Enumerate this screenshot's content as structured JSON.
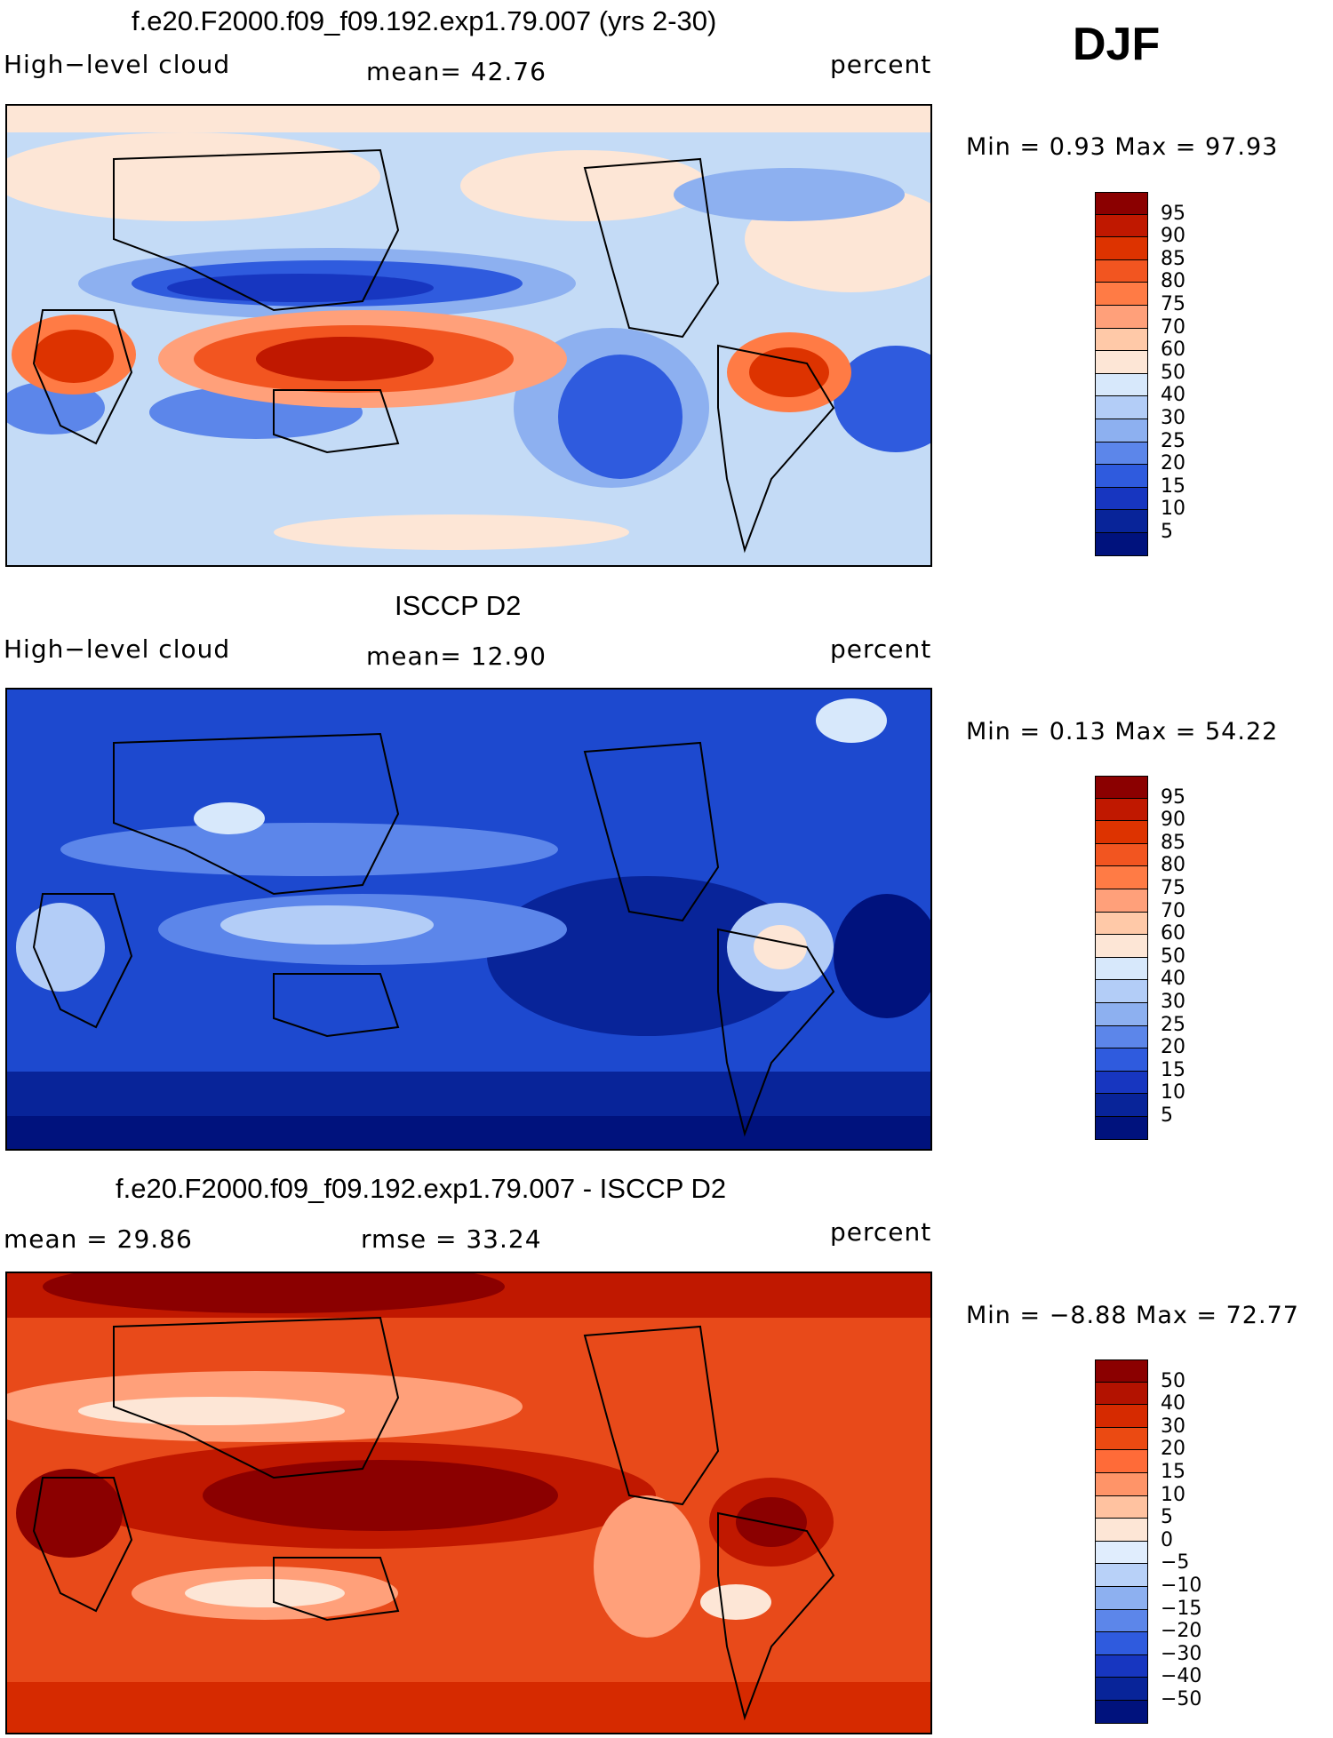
{
  "season": "DJF",
  "panels": [
    {
      "id": "model",
      "title": "f.e20.F2000.f09_f09.192.exp1.79.007 (yrs 2-30)",
      "left_label": "High−level cloud",
      "center_label": "mean=   42.76",
      "right_label": "percent",
      "minmax_label": "Min =    0.93  Max =   97.93",
      "colorbar_levels": [
        "95",
        "90",
        "85",
        "80",
        "75",
        "70",
        "60",
        "50",
        "40",
        "30",
        "25",
        "20",
        "15",
        "10",
        "5"
      ],
      "colorbar_colors": [
        "#8b0000",
        "#c01800",
        "#dd3300",
        "#f25520",
        "#ff7b45",
        "#ffa07a",
        "#ffc9a8",
        "#fde6d6",
        "#d7e8fb",
        "#b3cdf7",
        "#8db0f0",
        "#5c86ea",
        "#2f5bde",
        "#1736c0",
        "#082499",
        "#00127d"
      ],
      "ocean_color": "#c4dbf6"
    },
    {
      "id": "obs",
      "title": "ISCCP D2",
      "left_label": "High−level cloud",
      "center_label": "mean=   12.90",
      "right_label": "percent",
      "minmax_label": "Min =    0.13  Max =   54.22",
      "colorbar_levels": [
        "95",
        "90",
        "85",
        "80",
        "75",
        "70",
        "60",
        "50",
        "40",
        "30",
        "25",
        "20",
        "15",
        "10",
        "5"
      ],
      "colorbar_colors": [
        "#8b0000",
        "#c01800",
        "#dd3300",
        "#f25520",
        "#ff7b45",
        "#ffa07a",
        "#ffc9a8",
        "#fde6d6",
        "#d7e8fb",
        "#b3cdf7",
        "#8db0f0",
        "#5c86ea",
        "#2f5bde",
        "#1736c0",
        "#082499",
        "#00127d"
      ],
      "ocean_color": "#1d49cf"
    },
    {
      "id": "diff",
      "title": "f.e20.F2000.f09_f09.192.exp1.79.007 - ISCCP D2",
      "left_label": "mean =   29.86",
      "center_label": "rmse =   33.24",
      "right_label": "percent",
      "minmax_label": "Min =  −8.88  Max =   72.77",
      "colorbar_levels": [
        "50",
        "40",
        "30",
        "20",
        "15",
        "10",
        "5",
        "0",
        "−5",
        "−10",
        "−15",
        "−20",
        "−30",
        "−40",
        "−50"
      ],
      "colorbar_colors": [
        "#8b0000",
        "#b31200",
        "#d62a00",
        "#eb4a12",
        "#ff6b38",
        "#ff9468",
        "#ffc2a0",
        "#fde6d6",
        "#e0edfd",
        "#b8d1f8",
        "#8db0f0",
        "#5c86ea",
        "#2f5bde",
        "#1736c0",
        "#082499",
        "#00127d"
      ],
      "ocean_color": "#e84a1a"
    }
  ]
}
